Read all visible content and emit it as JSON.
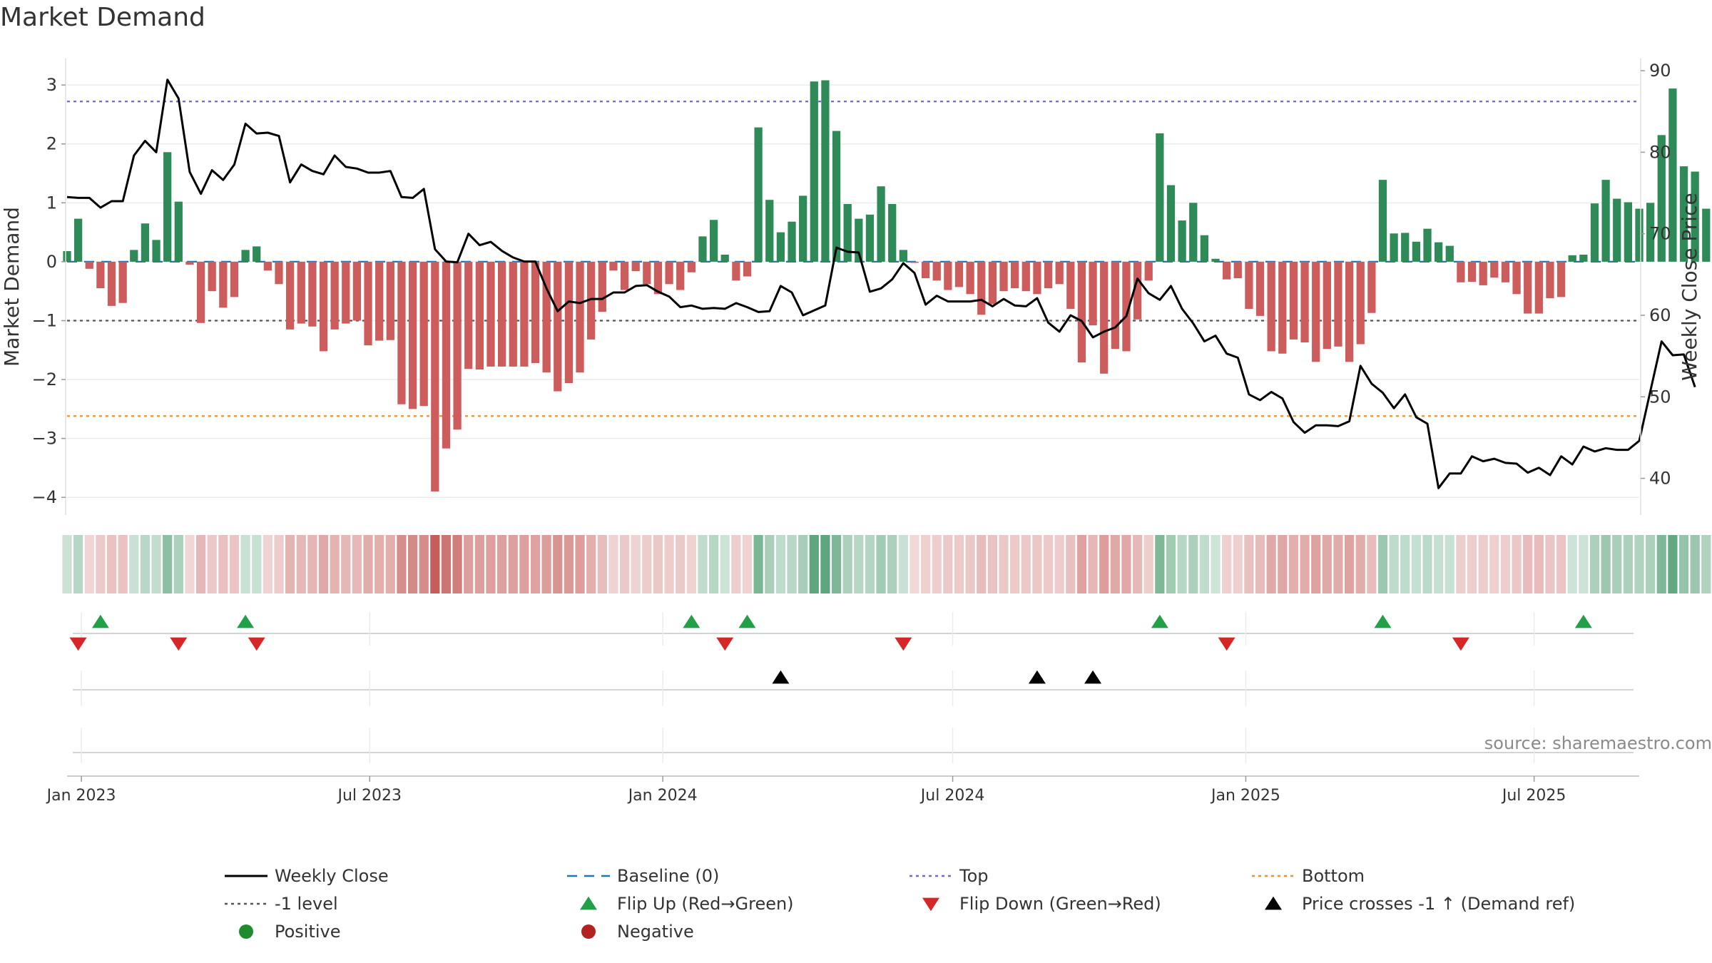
{
  "chart_data": {
    "type": "bar",
    "title": "Market Demand",
    "ylabel": "Market Demand",
    "y2label": "Weekly Close Price",
    "ylim": [
      -4.3,
      3.45
    ],
    "y2lim": [
      35.5,
      91.5
    ],
    "yticks": [
      3,
      2,
      1,
      0,
      -1,
      -2,
      -3,
      -4
    ],
    "ytick_labels": [
      "3",
      "2",
      "1",
      "0",
      "−1",
      "−2",
      "−3",
      "−4"
    ],
    "y2ticks": [
      90,
      80,
      70,
      60,
      50,
      40
    ],
    "y2tick_labels": [
      "90",
      "80",
      "70",
      "60",
      "50",
      "40"
    ],
    "x_start": "2022-12-23",
    "x_end": "2025-09-05",
    "xticks": [
      {
        "date": "2023-01-01",
        "label": "Jan 2023"
      },
      {
        "date": "2023-07-01",
        "label": "Jul 2023"
      },
      {
        "date": "2024-01-01",
        "label": "Jan 2024"
      },
      {
        "date": "2024-07-01",
        "label": "Jul 2024"
      },
      {
        "date": "2025-01-01",
        "label": "Jan 2025"
      },
      {
        "date": "2025-07-01",
        "label": "Jul 2025"
      }
    ],
    "first_week": "2022-12-23",
    "demand": [
      0.18,
      0.73,
      -0.12,
      -0.45,
      -0.75,
      -0.7,
      0.2,
      0.65,
      0.37,
      1.86,
      1.02,
      -0.05,
      -1.04,
      -0.5,
      -0.78,
      -0.6,
      0.2,
      0.26,
      -0.15,
      -0.38,
      -1.15,
      -1.05,
      -1.1,
      -1.52,
      -1.15,
      -1.05,
      -1.0,
      -1.42,
      -1.34,
      -1.33,
      -2.42,
      -2.5,
      -2.45,
      -3.9,
      -3.17,
      -2.85,
      -1.82,
      -1.83,
      -1.78,
      -1.78,
      -1.78,
      -1.78,
      -1.72,
      -1.88,
      -2.2,
      -2.06,
      -1.88,
      -1.32,
      -0.85,
      -0.15,
      -0.48,
      -0.16,
      -0.38,
      -0.55,
      -0.38,
      -0.48,
      -0.18,
      0.43,
      0.71,
      0.12,
      -0.32,
      -0.25,
      2.28,
      1.05,
      0.5,
      0.68,
      1.12,
      3.06,
      3.08,
      2.22,
      0.98,
      0.73,
      0.8,
      1.28,
      0.98,
      0.2,
      -0.02,
      -0.28,
      -0.32,
      -0.48,
      -0.43,
      -0.55,
      -0.9,
      -0.72,
      -0.5,
      -0.45,
      -0.5,
      -0.55,
      -0.45,
      -0.38,
      -0.8,
      -1.71,
      -1.08,
      -1.9,
      -1.48,
      -1.52,
      -0.98,
      -0.32,
      2.18,
      1.3,
      0.7,
      1.0,
      0.45,
      0.05,
      -0.3,
      -0.28,
      -0.8,
      -0.92,
      -1.52,
      -1.56,
      -1.32,
      -1.37,
      -1.7,
      -1.48,
      -1.44,
      -1.7,
      -1.4,
      -0.87,
      1.39,
      0.48,
      0.49,
      0.34,
      0.56,
      0.33,
      0.27,
      -0.35,
      -0.34,
      -0.4,
      -0.27,
      -0.35,
      -0.55,
      -0.88,
      -0.88,
      -0.62,
      -0.6,
      0.11,
      0.12,
      0.99,
      1.39,
      1.07,
      1.01,
      0.9,
      1.0,
      2.15,
      2.94,
      1.62,
      1.53,
      0.9
    ],
    "weekly_close": [
      74.5,
      74.4,
      74.4,
      73.2,
      74.0,
      74.0,
      79.6,
      81.4,
      80.0,
      88.9,
      86.6,
      77.6,
      74.9,
      77.8,
      76.6,
      78.5,
      83.5,
      82.3,
      82.4,
      82.0,
      76.3,
      78.5,
      77.7,
      77.3,
      79.6,
      78.2,
      78.0,
      77.5,
      77.5,
      77.7,
      74.5,
      74.4,
      75.5,
      68.1,
      66.6,
      66.5,
      70.0,
      68.6,
      69.0,
      67.9,
      67.1,
      66.6,
      66.6,
      63.3,
      60.5,
      61.7,
      61.5,
      62.0,
      62.0,
      62.8,
      62.8,
      63.6,
      63.7,
      62.9,
      62.3,
      61.0,
      61.2,
      60.8,
      60.9,
      60.8,
      61.5,
      61.0,
      60.4,
      60.5,
      63.6,
      62.8,
      60.0,
      60.6,
      61.2,
      68.3,
      67.8,
      67.7,
      62.9,
      63.3,
      64.4,
      66.4,
      65.2,
      61.3,
      62.4,
      61.7,
      61.7,
      61.7,
      61.9,
      61.1,
      62.0,
      61.2,
      61.1,
      62.1,
      59.1,
      58.0,
      60.0,
      59.3,
      57.3,
      58.0,
      58.5,
      59.9,
      64.5,
      62.7,
      61.9,
      63.6,
      60.8,
      59.0,
      56.8,
      57.5,
      55.3,
      54.8,
      50.3,
      49.6,
      50.6,
      49.8,
      46.9,
      45.6,
      46.5,
      46.5,
      46.4,
      47.0,
      53.8,
      51.6,
      50.5,
      48.6,
      50.3,
      47.5,
      46.7,
      38.8,
      40.6,
      40.6,
      42.7,
      42.1,
      42.4,
      41.9,
      41.8,
      40.7,
      41.3,
      40.4,
      42.7,
      41.7,
      43.9,
      43.3,
      43.7,
      43.5,
      43.5,
      44.6,
      50.7,
      56.8,
      55.1,
      55.2,
      51.2
    ],
    "heat_strip": {
      "note": "weekly demand sign and strength; same values as demand",
      "positive_color": "#2e8b57",
      "negative_color": "#c0504d"
    },
    "flip_up_weeks": [
      3,
      16,
      56,
      61,
      98,
      118,
      136
    ],
    "flip_down_weeks": [
      1,
      10,
      17,
      59,
      75,
      104,
      125
    ],
    "price_cross_weeks": [
      64,
      87,
      92
    ],
    "reference_lines": [
      {
        "name": "Baseline (0)",
        "value": 0,
        "color": "#1f77b4",
        "style": "dashed"
      },
      {
        "name": "Top",
        "value": 2.72,
        "color": "#6b6bcc",
        "style": "dotted"
      },
      {
        "name": "-1 level",
        "value": -1,
        "color": "#555555",
        "style": "dotted"
      },
      {
        "name": "Bottom",
        "value": -2.62,
        "color": "#f28e2b",
        "style": "dotted"
      }
    ],
    "legend": [
      {
        "label": "Weekly Close",
        "symbol": "line",
        "color": "#000000"
      },
      {
        "label": "Baseline (0)",
        "symbol": "dash",
        "color": "#1f77b4"
      },
      {
        "label": "Top",
        "symbol": "dot",
        "color": "#6b6bcc"
      },
      {
        "label": "Bottom",
        "symbol": "dot",
        "color": "#f28e2b"
      },
      {
        "label": "-1 level",
        "symbol": "dot",
        "color": "#555555"
      },
      {
        "label": "Flip Up (Red→Green)",
        "symbol": "triangle-up",
        "color": "#22a047"
      },
      {
        "label": "Flip Down (Green→Red)",
        "symbol": "triangle-down",
        "color": "#d62728"
      },
      {
        "label": "Price crosses -1 ↑ (Demand ref)",
        "symbol": "triangle-up",
        "color": "#000000"
      },
      {
        "label": "Positive",
        "symbol": "circle",
        "color": "#1f8b2c"
      },
      {
        "label": "Negative",
        "symbol": "circle",
        "color": "#b22222"
      }
    ],
    "legend_placement": "bottom",
    "grid": true,
    "colors": {
      "positive_bar": "#2e8b57",
      "negative_bar": "#cd5c5c",
      "close_line": "#000000"
    }
  },
  "source": "source: sharemaestro.com"
}
